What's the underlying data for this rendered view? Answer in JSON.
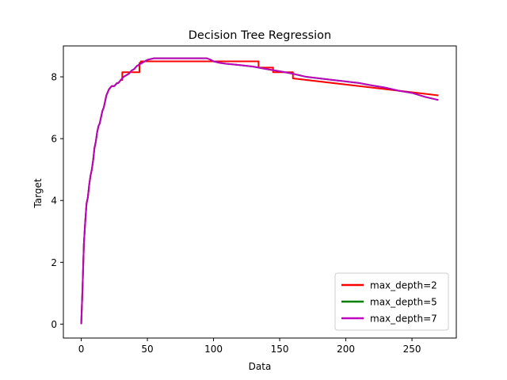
{
  "chart_data": {
    "type": "line",
    "title": "Decision Tree Regression",
    "xlabel": "Data",
    "ylabel": "Target",
    "xlim": [
      -13.5,
      283.5
    ],
    "ylim": [
      -0.45,
      9.0
    ],
    "xticks": [
      0,
      50,
      100,
      150,
      200,
      250
    ],
    "yticks": [
      0,
      2,
      4,
      6,
      8
    ],
    "grid": false,
    "legend_position": "lower-right",
    "series": [
      {
        "name": "max_depth=2",
        "color": "#ff0000",
        "x": [
          0,
          1,
          2,
          3,
          4,
          5,
          6,
          7,
          8,
          9,
          10,
          11,
          12,
          13,
          14,
          15,
          16,
          17,
          18,
          19,
          20,
          21,
          22,
          23,
          24,
          25,
          26,
          27,
          28,
          29,
          30,
          31,
          31,
          33,
          33,
          44,
          44,
          45,
          45,
          48,
          48,
          134,
          134,
          145,
          145,
          150,
          150,
          160,
          160,
          270
        ],
        "y": [
          0.0,
          1.2,
          2.6,
          3.3,
          3.9,
          4.1,
          4.5,
          4.8,
          5.0,
          5.3,
          5.7,
          5.9,
          6.2,
          6.4,
          6.5,
          6.7,
          6.9,
          7.0,
          7.2,
          7.4,
          7.5,
          7.6,
          7.65,
          7.7,
          7.7,
          7.7,
          7.75,
          7.8,
          7.8,
          7.85,
          7.9,
          7.9,
          8.15,
          8.15,
          8.15,
          8.15,
          8.45,
          8.45,
          8.5,
          8.5,
          8.5,
          8.5,
          8.3,
          8.3,
          8.15,
          8.15,
          8.15,
          8.15,
          7.95,
          7.4
        ]
      },
      {
        "name": "max_depth=5",
        "color": "#008000",
        "x": [
          0,
          1,
          2,
          3,
          4,
          5,
          6,
          7,
          8,
          9,
          10,
          11,
          12,
          13,
          14,
          15,
          16,
          17,
          18,
          19,
          20,
          21,
          22,
          23,
          24,
          25,
          26,
          27,
          28,
          29,
          30,
          32,
          34,
          36,
          38,
          40,
          42,
          44,
          46,
          48,
          50,
          55,
          60,
          70,
          80,
          90,
          95,
          98,
          100,
          105,
          110,
          115,
          120,
          130,
          140,
          150,
          160,
          170,
          180,
          190,
          200,
          210,
          220,
          230,
          240,
          250,
          260,
          270
        ],
        "y": [
          0.0,
          1.2,
          2.6,
          3.3,
          3.9,
          4.1,
          4.5,
          4.8,
          5.0,
          5.3,
          5.7,
          5.9,
          6.2,
          6.4,
          6.5,
          6.7,
          6.9,
          7.0,
          7.2,
          7.4,
          7.5,
          7.6,
          7.65,
          7.7,
          7.7,
          7.7,
          7.75,
          7.8,
          7.8,
          7.85,
          7.9,
          8.0,
          8.05,
          8.1,
          8.2,
          8.25,
          8.35,
          8.4,
          8.45,
          8.5,
          8.55,
          8.6,
          8.6,
          8.6,
          8.6,
          8.6,
          8.6,
          8.55,
          8.5,
          8.45,
          8.42,
          8.4,
          8.38,
          8.33,
          8.25,
          8.18,
          8.1,
          8.0,
          7.95,
          7.9,
          7.85,
          7.8,
          7.72,
          7.65,
          7.55,
          7.48,
          7.35,
          7.25
        ]
      },
      {
        "name": "max_depth=7",
        "color": "#bf00bf",
        "x": [
          0,
          1,
          2,
          3,
          4,
          5,
          6,
          7,
          8,
          9,
          10,
          11,
          12,
          13,
          14,
          15,
          16,
          17,
          18,
          19,
          20,
          21,
          22,
          23,
          24,
          25,
          26,
          27,
          28,
          29,
          30,
          32,
          34,
          36,
          38,
          40,
          42,
          44,
          46,
          48,
          50,
          55,
          60,
          70,
          80,
          90,
          95,
          98,
          100,
          105,
          110,
          115,
          120,
          130,
          140,
          150,
          160,
          170,
          180,
          190,
          200,
          210,
          220,
          230,
          240,
          250,
          260,
          270
        ],
        "y": [
          0.0,
          1.2,
          2.6,
          3.3,
          3.9,
          4.1,
          4.5,
          4.8,
          5.0,
          5.3,
          5.7,
          5.9,
          6.2,
          6.4,
          6.5,
          6.7,
          6.9,
          7.0,
          7.2,
          7.4,
          7.5,
          7.6,
          7.65,
          7.7,
          7.7,
          7.7,
          7.75,
          7.8,
          7.8,
          7.85,
          7.9,
          8.0,
          8.05,
          8.1,
          8.2,
          8.25,
          8.35,
          8.4,
          8.45,
          8.5,
          8.55,
          8.6,
          8.6,
          8.6,
          8.6,
          8.6,
          8.6,
          8.55,
          8.5,
          8.45,
          8.42,
          8.4,
          8.38,
          8.33,
          8.25,
          8.18,
          8.1,
          8.0,
          7.95,
          7.9,
          7.85,
          7.8,
          7.72,
          7.65,
          7.55,
          7.48,
          7.35,
          7.25
        ]
      }
    ]
  }
}
